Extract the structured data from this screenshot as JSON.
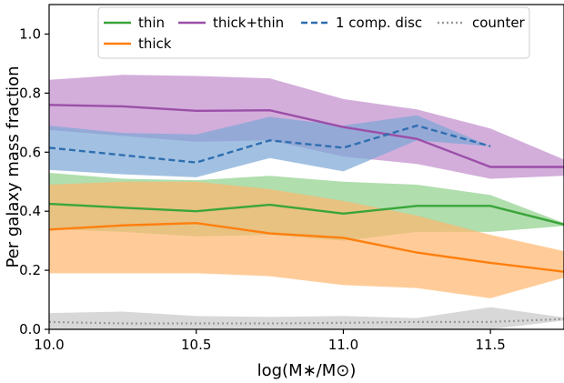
{
  "chart_data": {
    "type": "line",
    "xlabel": "log(M∗/M⊙)",
    "ylabel": "Per galaxy mass fraction",
    "xlim": [
      10.0,
      11.75
    ],
    "ylim": [
      0.0,
      1.1
    ],
    "xticks": [
      "10.0",
      "10.5",
      "11.0",
      "11.5"
    ],
    "xtick_values": [
      10.0,
      10.5,
      11.0,
      11.5
    ],
    "yticks": [
      "0.0",
      "0.2",
      "0.4",
      "0.6",
      "0.8",
      "1.0"
    ],
    "ytick_values": [
      0.0,
      0.2,
      0.4,
      0.6,
      0.8,
      1.0
    ],
    "grid": false,
    "legend_position": "top",
    "series": [
      {
        "name": "thick+thin",
        "color": "#9b4fa8",
        "band_color": "#c08ccc",
        "style": "solid",
        "x": [
          10.0,
          10.25,
          10.5,
          10.75,
          11.0,
          11.25,
          11.5,
          11.75
        ],
        "values": [
          0.76,
          0.755,
          0.74,
          0.742,
          0.685,
          0.645,
          0.55,
          0.55
        ],
        "upper": [
          0.845,
          0.862,
          0.858,
          0.85,
          0.78,
          0.745,
          0.68,
          0.575
        ],
        "lower": [
          0.675,
          0.655,
          0.635,
          0.64,
          0.585,
          0.56,
          0.51,
          0.52
        ]
      },
      {
        "name": "1 comp. disc",
        "color": "#2f6fb0",
        "band_color": "#7ba7d5",
        "style": "dashed",
        "x": [
          10.0,
          10.25,
          10.5,
          10.75,
          11.0,
          11.25,
          11.5
        ],
        "values": [
          0.615,
          0.59,
          0.565,
          0.64,
          0.615,
          0.69,
          0.62
        ],
        "upper": [
          0.69,
          0.665,
          0.66,
          0.72,
          0.69,
          0.725,
          0.62
        ],
        "lower": [
          0.54,
          0.525,
          0.515,
          0.58,
          0.535,
          0.64,
          0.62
        ]
      },
      {
        "name": "thin",
        "color": "#3aa53a",
        "band_color": "#8fd08a",
        "style": "solid",
        "x": [
          10.0,
          10.25,
          10.5,
          10.75,
          11.0,
          11.25,
          11.5,
          11.75
        ],
        "values": [
          0.425,
          0.412,
          0.4,
          0.422,
          0.392,
          0.418,
          0.418,
          0.355
        ],
        "upper": [
          0.53,
          0.51,
          0.505,
          0.52,
          0.5,
          0.49,
          0.455,
          0.36
        ],
        "lower": [
          0.34,
          0.33,
          0.315,
          0.32,
          0.3,
          0.33,
          0.33,
          0.35
        ]
      },
      {
        "name": "thick",
        "color": "#ff7f0e",
        "band_color": "#ffb66e",
        "style": "solid",
        "x": [
          10.0,
          10.25,
          10.5,
          10.75,
          11.0,
          11.25,
          11.5,
          11.75
        ],
        "values": [
          0.338,
          0.352,
          0.36,
          0.325,
          0.31,
          0.26,
          0.225,
          0.195
        ],
        "upper": [
          0.49,
          0.5,
          0.5,
          0.475,
          0.435,
          0.385,
          0.32,
          0.265
        ],
        "lower": [
          0.19,
          0.19,
          0.19,
          0.18,
          0.15,
          0.14,
          0.105,
          0.175
        ]
      },
      {
        "name": "counter",
        "color": "#9a9a9a",
        "band_color": "#c8c8c8",
        "style": "dotted",
        "x": [
          10.0,
          10.25,
          10.5,
          10.75,
          11.0,
          11.25,
          11.5,
          11.75
        ],
        "values": [
          0.025,
          0.02,
          0.02,
          0.02,
          0.022,
          0.025,
          0.025,
          0.035
        ],
        "upper": [
          0.055,
          0.06,
          0.045,
          0.042,
          0.045,
          0.038,
          0.075,
          0.04
        ],
        "lower": [
          0.0,
          0.0,
          0.0,
          0.0,
          0.0,
          0.0,
          0.0,
          0.03
        ]
      }
    ],
    "legend": [
      {
        "name": "thin",
        "color": "#3aa53a",
        "style": "solid"
      },
      {
        "name": "thick+thin",
        "color": "#9b4fa8",
        "style": "solid"
      },
      {
        "name": "1 comp. disc",
        "color": "#2f6fb0",
        "style": "dashed"
      },
      {
        "name": "counter",
        "color": "#9a9a9a",
        "style": "dotted"
      },
      {
        "name": "thick",
        "color": "#ff7f0e",
        "style": "solid"
      }
    ]
  }
}
